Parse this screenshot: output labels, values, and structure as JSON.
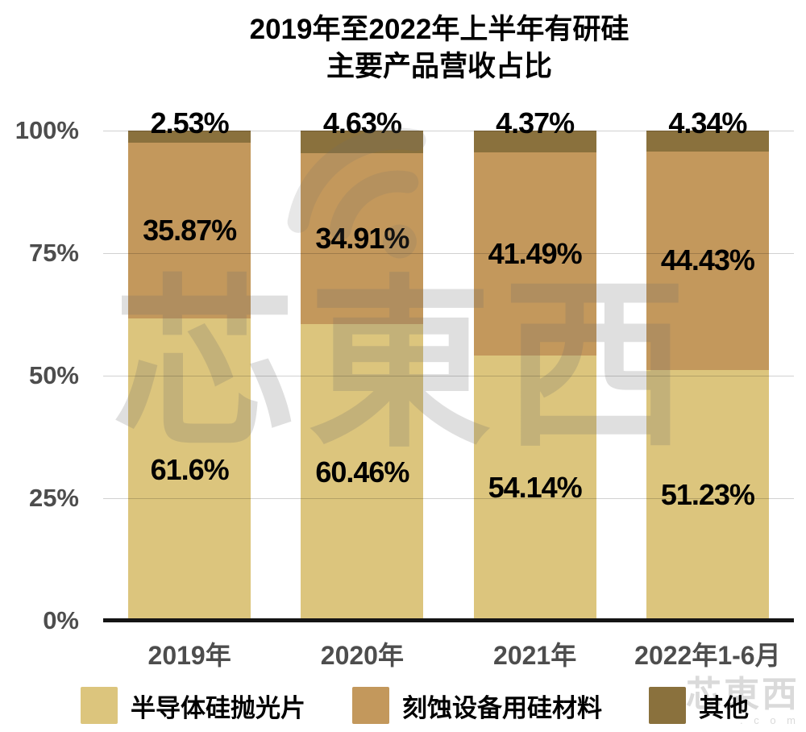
{
  "title": {
    "line1": "2019年至2022年上半年有研硅",
    "line2": "主要产品营收占比"
  },
  "chart_data": {
    "type": "bar",
    "subtype": "stacked-100-percent",
    "categories": [
      "2019年",
      "2020年",
      "2021年",
      "2022年1-6月"
    ],
    "series": [
      {
        "name": "半导体硅抛光片",
        "color": "#DCC57D",
        "values": [
          61.6,
          60.46,
          54.14,
          51.23
        ],
        "labels": [
          "61.6%",
          "60.46%",
          "54.14%",
          "51.23%"
        ]
      },
      {
        "name": "刻蚀设备用硅材料",
        "color": "#C3985C",
        "values": [
          35.87,
          34.91,
          41.49,
          44.43
        ],
        "labels": [
          "35.87%",
          "34.91%",
          "41.49%",
          "44.43%"
        ]
      },
      {
        "name": "其他",
        "color": "#8A713D",
        "values": [
          2.53,
          4.63,
          4.37,
          4.34
        ],
        "labels": [
          "2.53%",
          "4.63%",
          "4.37%",
          "4.34%"
        ]
      }
    ],
    "y_ticks": [
      "0%",
      "25%",
      "50%",
      "75%",
      "100%"
    ],
    "ylim": [
      0,
      100
    ],
    "grid": true,
    "legend_position": "bottom",
    "title": "2019年至2022年上半年有研硅 主要产品营收占比"
  },
  "style": {
    "axis_color": "#141414",
    "gridline_color": "rgba(0,0,0,0.18)",
    "tick_label_color": "#4d4d4d",
    "data_label_color": "#000000"
  },
  "watermark": {
    "center_text": "芯東西",
    "corner_text": "芯東西",
    "corner_sub": ". c o m"
  }
}
